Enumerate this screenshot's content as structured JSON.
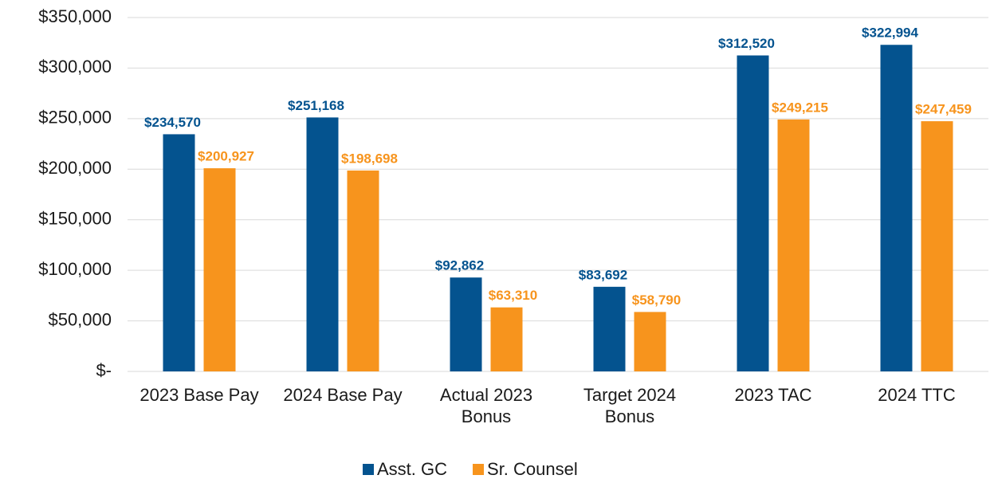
{
  "chart_data": {
    "type": "bar",
    "categories": [
      "2023 Base Pay",
      "2024 Base Pay",
      "Actual 2023 Bonus",
      "Target 2024 Bonus",
      "2023 TAC",
      "2024 TTC"
    ],
    "series": [
      {
        "name": "Asst. GC",
        "color": "#04538f",
        "values": [
          234570,
          251168,
          92862,
          83692,
          312520,
          322994
        ],
        "value_labels": [
          "$234,570",
          "$251,168",
          "$92,862",
          "$83,692",
          "$312,520",
          "$322,994"
        ]
      },
      {
        "name": "Sr. Counsel",
        "color": "#f7941d",
        "values": [
          200927,
          198698,
          63310,
          58790,
          249215,
          247459
        ],
        "value_labels": [
          "$200,927",
          "$198,698",
          "$63,310",
          "$58,790",
          "$249,215",
          "$247,459"
        ]
      }
    ],
    "ylim": [
      0,
      350000
    ],
    "yticks": [
      {
        "value": 0,
        "label": "$-"
      },
      {
        "value": 50000,
        "label": "$50,000"
      },
      {
        "value": 100000,
        "label": "$100,000"
      },
      {
        "value": 150000,
        "label": "$150,000"
      },
      {
        "value": 200000,
        "label": "$200,000"
      },
      {
        "value": 250000,
        "label": "$250,000"
      },
      {
        "value": 300000,
        "label": "$300,000"
      },
      {
        "value": 350000,
        "label": "$350,000"
      }
    ],
    "grid": true,
    "legend": "bottom"
  }
}
